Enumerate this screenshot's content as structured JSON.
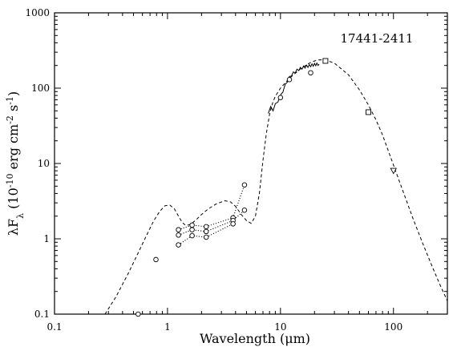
{
  "chart_data": {
    "type": "scatter",
    "title": "17441-2411",
    "xlabel": "Wavelength (μm)",
    "ylabel": "λF_λ (10^-10 erg cm^-2 s^-1)",
    "xscale": "log",
    "yscale": "log",
    "xlim": [
      0.1,
      300
    ],
    "ylim": [
      0.1,
      1000
    ],
    "x_ticks": [
      "0.1",
      "1",
      "10",
      "100"
    ],
    "y_ticks": [
      "0.1",
      "1",
      "10",
      "100",
      "1000"
    ],
    "grid": false,
    "series": [
      {
        "style": "circle-markers",
        "points": [
          [
            0.55,
            0.1
          ],
          [
            0.79,
            0.53
          ],
          [
            1.25,
            1.32
          ],
          [
            1.25,
            1.12
          ],
          [
            1.25,
            0.83
          ],
          [
            1.65,
            1.52
          ],
          [
            1.65,
            1.32
          ],
          [
            1.65,
            1.1
          ],
          [
            2.2,
            1.45
          ],
          [
            2.2,
            1.25
          ],
          [
            2.2,
            1.05
          ],
          [
            3.8,
            1.9
          ],
          [
            3.8,
            1.75
          ],
          [
            3.8,
            1.58
          ],
          [
            4.8,
            5.2
          ],
          [
            4.8,
            2.4
          ]
        ]
      },
      {
        "style": "dotted-lines",
        "lines": [
          [
            [
              1.25,
              1.32
            ],
            [
              1.65,
              1.52
            ],
            [
              2.2,
              1.45
            ],
            [
              3.8,
              1.9
            ],
            [
              4.8,
              5.2
            ]
          ],
          [
            [
              1.25,
              1.12
            ],
            [
              1.65,
              1.32
            ],
            [
              2.2,
              1.25
            ],
            [
              3.8,
              1.75
            ],
            [
              4.8,
              2.4
            ]
          ],
          [
            [
              1.25,
              0.83
            ],
            [
              1.65,
              1.1
            ],
            [
              2.2,
              1.05
            ],
            [
              3.8,
              1.58
            ]
          ]
        ]
      },
      {
        "style": "circle-markers-mid-ir",
        "points": [
          [
            10,
            75
          ],
          [
            12,
            130
          ],
          [
            18.5,
            160
          ]
        ]
      },
      {
        "style": "square-markers",
        "points": [
          [
            25,
            230
          ],
          [
            60,
            48
          ]
        ]
      },
      {
        "style": "triangle-markers",
        "points": [
          [
            100,
            8
          ]
        ]
      },
      {
        "style": "spectrum-solid",
        "points": [
          [
            7.8,
            48
          ],
          [
            8.2,
            55
          ],
          [
            8.6,
            52
          ],
          [
            9,
            60
          ],
          [
            9.5,
            68
          ],
          [
            10,
            78
          ],
          [
            10.5,
            92
          ],
          [
            11,
            108
          ],
          [
            11.5,
            125
          ],
          [
            12,
            138
          ],
          [
            12.5,
            150
          ],
          [
            13,
            158
          ],
          [
            13.5,
            165
          ],
          [
            14,
            172
          ],
          [
            14.5,
            178
          ],
          [
            15,
            182
          ],
          [
            15.5,
            186
          ],
          [
            16,
            189
          ],
          [
            16.5,
            192
          ],
          [
            17,
            194
          ],
          [
            17.5,
            196
          ],
          [
            18,
            198
          ],
          [
            18.5,
            200
          ],
          [
            19,
            202
          ],
          [
            19.5,
            203
          ],
          [
            20,
            205
          ],
          [
            20.5,
            206
          ],
          [
            21,
            207
          ],
          [
            21.5,
            208
          ],
          [
            22,
            200
          ]
        ]
      },
      {
        "style": "model-dashed",
        "points": [
          [
            0.28,
            0.1
          ],
          [
            0.35,
            0.17
          ],
          [
            0.45,
            0.35
          ],
          [
            0.55,
            0.65
          ],
          [
            0.65,
            1.1
          ],
          [
            0.75,
            1.7
          ],
          [
            0.85,
            2.3
          ],
          [
            0.95,
            2.75
          ],
          [
            1.05,
            2.8
          ],
          [
            1.15,
            2.5
          ],
          [
            1.25,
            2.0
          ],
          [
            1.35,
            1.65
          ],
          [
            1.45,
            1.5
          ],
          [
            1.6,
            1.55
          ],
          [
            1.8,
            1.8
          ],
          [
            2.0,
            2.1
          ],
          [
            2.3,
            2.5
          ],
          [
            2.7,
            2.9
          ],
          [
            3.2,
            3.2
          ],
          [
            3.6,
            3.1
          ],
          [
            4.0,
            2.7
          ],
          [
            4.5,
            2.1
          ],
          [
            5.0,
            1.75
          ],
          [
            5.5,
            1.6
          ],
          [
            6.0,
            2.0
          ],
          [
            6.5,
            4.0
          ],
          [
            7.0,
            11
          ],
          [
            7.5,
            25
          ],
          [
            8.0,
            45
          ],
          [
            8.5,
            63
          ],
          [
            9.0,
            78
          ],
          [
            10,
            100
          ],
          [
            12,
            135
          ],
          [
            15,
            180
          ],
          [
            18,
            215
          ],
          [
            20,
            230
          ],
          [
            22,
            238
          ],
          [
            25,
            236
          ],
          [
            30,
            215
          ],
          [
            40,
            150
          ],
          [
            50,
            95
          ],
          [
            60,
            60
          ],
          [
            70,
            38
          ],
          [
            80,
            24
          ],
          [
            100,
            9.5
          ],
          [
            120,
            4.5
          ],
          [
            150,
            1.8
          ],
          [
            180,
            0.9
          ],
          [
            220,
            0.43
          ],
          [
            260,
            0.24
          ],
          [
            300,
            0.15
          ]
        ]
      }
    ]
  }
}
